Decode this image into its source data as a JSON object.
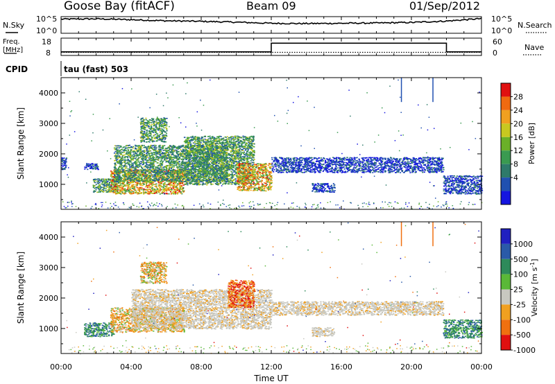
{
  "header": {
    "title": "Goose Bay (fitACF)",
    "beam": "Beam 09",
    "date": "01/Sep/2012"
  },
  "noise_panel": {
    "left_label": "N.Sky",
    "left_ticks": [
      "10^5",
      "10^0"
    ],
    "right_label": "N.Search",
    "right_ticks": [
      "10^5",
      "10^0"
    ]
  },
  "freq_panel": {
    "left_label_line1": "Freq.",
    "left_label_line2": "[MHz]",
    "left_ticks": [
      "18",
      "8"
    ],
    "right_label": "Nave",
    "right_ticks": [
      "60",
      "0"
    ]
  },
  "cpid_panel": {
    "label": "CPID",
    "program": "tau (fast) 503"
  },
  "range_axis": {
    "label": "Slant Range [km]",
    "ticks": [
      "4000",
      "3000",
      "2000",
      "1000"
    ]
  },
  "time_axis": {
    "label": "Time UT",
    "ticks": [
      "00:00",
      "04:00",
      "08:00",
      "12:00",
      "16:00",
      "20:00",
      "00:00"
    ]
  },
  "power_scale": {
    "label": "Power [dB]",
    "ticks": [
      "28",
      "24",
      "20",
      "16",
      "12",
      "8",
      "4"
    ],
    "colors": [
      "#1515e0",
      "#2050b0",
      "#2e7a6a",
      "#3a9a50",
      "#6ab028",
      "#c8c820",
      "#f0a020",
      "#f06a10",
      "#e01010"
    ]
  },
  "velocity_scale": {
    "label": "Velocity [m s",
    "label_exp": "-1",
    "label_tail": "]",
    "ticks": [
      "1000",
      "500",
      "100",
      "25",
      "-25",
      "-100",
      "-500",
      "-1000"
    ],
    "colors": [
      "#2020c0",
      "#2a5aa8",
      "#2e8a5a",
      "#5ab838",
      "#c8c8c0",
      "#f0a020",
      "#f07010",
      "#e01010"
    ]
  },
  "chart_data": [
    {
      "type": "line",
      "title": "Goose Bay (fitACF)",
      "series": [
        {
          "name": "N.Sky",
          "x": [
            "00:00",
            "02:00",
            "04:00",
            "06:00",
            "08:00",
            "10:00",
            "12:00",
            "14:00",
            "16:00",
            "18:00",
            "20:00",
            "22:00",
            "24:00"
          ],
          "values": [
            4.6,
            4.7,
            4.4,
            4.0,
            3.8,
            3.5,
            3.1,
            3.0,
            3.1,
            3.2,
            3.4,
            3.9,
            4.8
          ]
        }
      ],
      "ylim": [
        0,
        5
      ]
    },
    {
      "type": "line",
      "series": [
        {
          "name": "Freq.",
          "x": [
            "00:00",
            "12:00",
            "12:00",
            "22:00",
            "22:00",
            "24:00"
          ],
          "values": [
            9.5,
            9.5,
            15.5,
            15.5,
            9.5,
            9.5
          ]
        },
        {
          "name": "Nave",
          "x": [
            "00:00",
            "24:00"
          ],
          "values": [
            18,
            18
          ]
        }
      ],
      "ylim": [
        8,
        18
      ]
    },
    {
      "type": "heatmap",
      "xlabel": "Time UT",
      "ylabel": "Slant Range [km]",
      "xlim": [
        0,
        24
      ],
      "ylim": [
        180,
        4500
      ],
      "colorbar": {
        "label": "Power [dB]",
        "ticks": [
          4,
          8,
          12,
          16,
          20,
          24,
          28
        ]
      },
      "regions": [
        {
          "t0": 0.0,
          "t1": 0.3,
          "r0": 1500,
          "r1": 1900,
          "level": "low"
        },
        {
          "t0": 1.3,
          "t1": 2.1,
          "r0": 1500,
          "r1": 1700,
          "level": "low"
        },
        {
          "t0": 1.8,
          "t1": 3.2,
          "r0": 750,
          "r1": 1200,
          "level": "mid"
        },
        {
          "t0": 2.8,
          "t1": 7.0,
          "r0": 700,
          "r1": 1500,
          "level": "high"
        },
        {
          "t0": 3.0,
          "t1": 9.5,
          "r0": 1100,
          "r1": 2300,
          "level": "mid"
        },
        {
          "t0": 4.5,
          "t1": 6.0,
          "r0": 2400,
          "r1": 3200,
          "level": "mid"
        },
        {
          "t0": 7.0,
          "t1": 11.0,
          "r0": 1000,
          "r1": 2600,
          "level": "mid"
        },
        {
          "t0": 10.0,
          "t1": 12.0,
          "r0": 800,
          "r1": 1700,
          "level": "high"
        },
        {
          "t0": 12.0,
          "t1": 21.8,
          "r0": 1400,
          "r1": 1900,
          "level": "low"
        },
        {
          "t0": 14.3,
          "t1": 15.6,
          "r0": 750,
          "r1": 1050,
          "level": "low"
        },
        {
          "t0": 21.8,
          "t1": 24.0,
          "r0": 700,
          "r1": 1300,
          "level": "low"
        }
      ]
    },
    {
      "type": "heatmap",
      "xlabel": "Time UT",
      "ylabel": "Slant Range [km]",
      "xlim": [
        0,
        24
      ],
      "ylim": [
        180,
        4500
      ],
      "colorbar": {
        "label": "Velocity [m s-1]",
        "ticks": [
          1000,
          500,
          100,
          25,
          -25,
          -100,
          -500,
          -1000
        ]
      },
      "regions": [
        {
          "t0": 1.3,
          "t1": 3.0,
          "r0": 750,
          "r1": 1200,
          "level": "toward"
        },
        {
          "t0": 2.8,
          "t1": 7.0,
          "r0": 900,
          "r1": 1700,
          "level": "away"
        },
        {
          "t0": 4.0,
          "t1": 12.0,
          "r0": 1000,
          "r1": 2300,
          "level": "ground"
        },
        {
          "t0": 4.5,
          "t1": 6.0,
          "r0": 2500,
          "r1": 3200,
          "level": "away"
        },
        {
          "t0": 9.5,
          "t1": 11.0,
          "r0": 1700,
          "r1": 2600,
          "level": "away_fast"
        },
        {
          "t0": 12.0,
          "t1": 21.8,
          "r0": 1450,
          "r1": 1900,
          "level": "ground"
        },
        {
          "t0": 14.3,
          "t1": 15.6,
          "r0": 750,
          "r1": 1050,
          "level": "ground"
        },
        {
          "t0": 21.8,
          "t1": 24.0,
          "r0": 700,
          "r1": 1300,
          "level": "toward"
        }
      ]
    }
  ]
}
